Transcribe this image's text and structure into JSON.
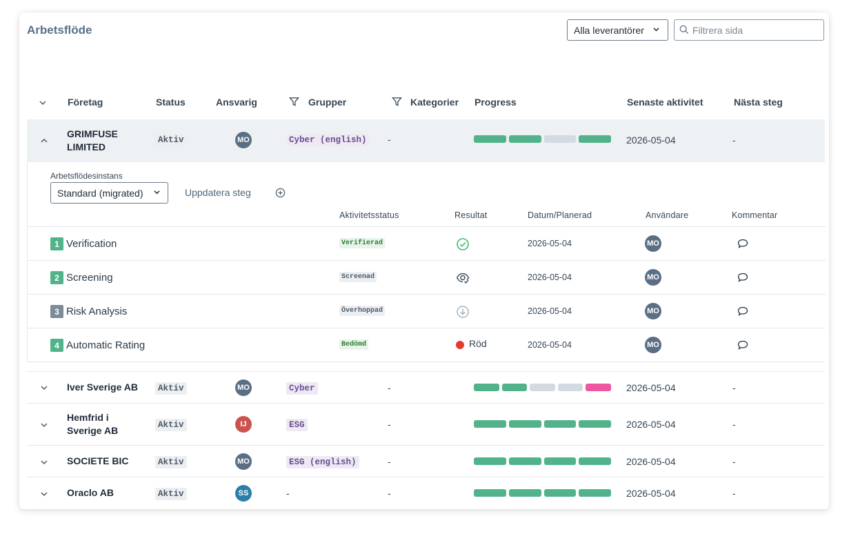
{
  "header": {
    "title": "Arbetsflöde",
    "vendor_filter": "Alla leverantörer",
    "search_placeholder": "Filtrera sida"
  },
  "columns": {
    "company": "Företag",
    "status": "Status",
    "owner": "Ansvarig",
    "groups": "Grupper",
    "categories": "Kategorier",
    "progress": "Progress",
    "last_activity": "Senaste aktivitet",
    "next_step": "Nästa steg"
  },
  "colors": {
    "done": "#52b38b",
    "pending": "#d3dae1",
    "alert": "#f0569f",
    "avatar_mo": "#5a6f84",
    "avatar_ij": "#c9534d",
    "avatar_ss": "#2a7fa8"
  },
  "expanded_row": {
    "company_line1": "GRIMFUSE",
    "company_line2": "LIMITED",
    "status": "Aktiv",
    "owner_initials": "MO",
    "group": "Cyber (english)",
    "categories": "-",
    "progress": [
      "done",
      "done",
      "pending",
      "done"
    ],
    "last_activity": "2026-05-04",
    "next_step": "-"
  },
  "detail": {
    "instance_label": "Arbetsflödesinstans",
    "instance_value": "Standard (migrated)",
    "update_link": "Uppdatera steg",
    "headers": {
      "activity_status": "Aktivitetsstatus",
      "result": "Resultat",
      "date": "Datum/Planerad",
      "user": "Användare",
      "comment": "Kommentar"
    },
    "steps": [
      {
        "num": "1",
        "name": "Verification",
        "status": "Verifierad",
        "result_icon": "check-circle-icon",
        "date": "2026-05-04",
        "user": "MO"
      },
      {
        "num": "2",
        "name": "Screening",
        "status": "Screenad",
        "result_icon": "eye-check-icon",
        "date": "2026-05-04",
        "user": "MO"
      },
      {
        "num": "3",
        "name": "Risk Analysis",
        "status": "Överhoppad",
        "result_icon": "skip-circle-icon",
        "date": "2026-05-04",
        "user": "MO"
      },
      {
        "num": "4",
        "name": "Automatic Rating",
        "status": "Bedömd",
        "result_text": "Röd",
        "date": "2026-05-04",
        "user": "MO"
      }
    ]
  },
  "rows": [
    {
      "company_line1": "Iver Sverige AB",
      "company_line2": "",
      "status": "Aktiv",
      "owner": "MO",
      "group": "Cyber",
      "categories": "-",
      "progress": [
        "done",
        "done",
        "pending",
        "pending",
        "alert"
      ],
      "last_activity": "2026-05-04",
      "next_step": "-"
    },
    {
      "company_line1": "Hemfrid i",
      "company_line2": "Sverige AB",
      "status": "Aktiv",
      "owner": "IJ",
      "group": "ESG",
      "categories": "-",
      "progress": [
        "done",
        "done",
        "done",
        "done"
      ],
      "last_activity": "2026-05-04",
      "next_step": "-"
    },
    {
      "company_line1": "SOCIETE BIC",
      "company_line2": "",
      "status": "Aktiv",
      "owner": "MO",
      "group": "ESG (english)",
      "categories": "-",
      "progress": [
        "done",
        "done",
        "done",
        "done"
      ],
      "last_activity": "2026-05-04",
      "next_step": "-"
    },
    {
      "company_line1": "Oraclo AB",
      "company_line2": "",
      "status": "Aktiv",
      "owner": "SS",
      "group": "-",
      "categories": "-",
      "progress": [
        "done",
        "done",
        "done",
        "done"
      ],
      "last_activity": "2026-05-04",
      "next_step": "-"
    }
  ]
}
